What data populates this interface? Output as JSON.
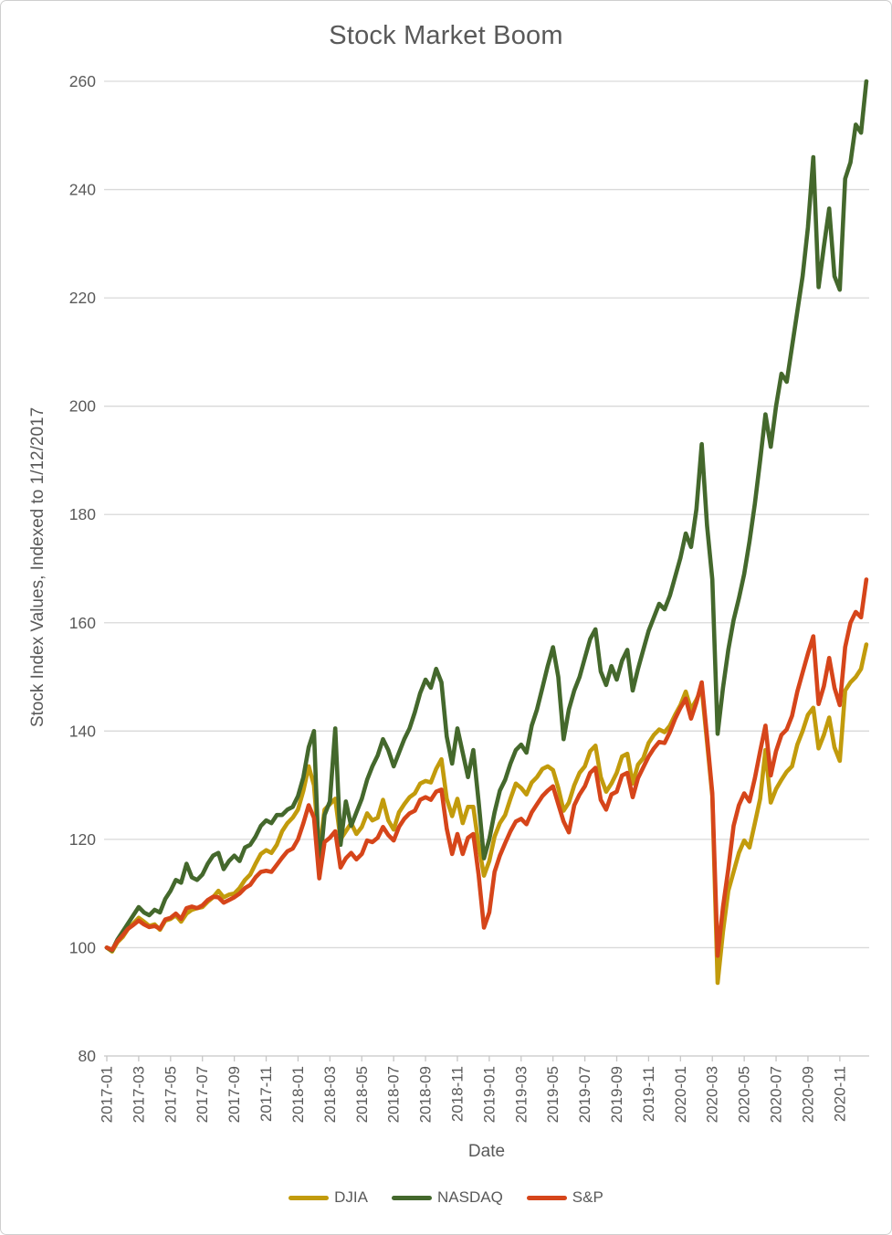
{
  "title": "Stock Market Boom",
  "colors": {
    "djia": "#c29b0c",
    "nasdaq": "#44682c",
    "sp": "#d6451a",
    "text": "#595959",
    "gridline": "#d9d9d9",
    "axis": "#c6c6c6",
    "border": "#cfcfcf"
  },
  "chart_data": {
    "type": "line",
    "title": "Stock Market Boom",
    "xlabel": "Date",
    "ylabel": "Stock Index Values, Indexed to 1/12/2017",
    "ylim": [
      80,
      260
    ],
    "y_ticks": [
      80,
      100,
      120,
      140,
      160,
      180,
      200,
      220,
      240,
      260
    ],
    "grid": "horizontal",
    "legend_position": "bottom",
    "x_start_month": "2017-01",
    "x_step_months": 0.33333,
    "x_range_months": [
      0,
      47.67
    ],
    "x_tick_step_months": 2,
    "x_tick_labels": [
      "2017-01",
      "2017-03",
      "2017-05",
      "2017-07",
      "2017-09",
      "2017-11",
      "2018-01",
      "2018-03",
      "2018-05",
      "2018-07",
      "2018-09",
      "2018-11",
      "2019-01",
      "2019-03",
      "2019-05",
      "2019-07",
      "2019-09",
      "2019-11",
      "2020-01",
      "2020-03",
      "2020-05",
      "2020-07",
      "2020-09",
      "2020-11"
    ],
    "series": [
      {
        "name": "DJIA",
        "color_key": "djia",
        "values": [
          100,
          99.3,
          101,
          102,
          103.5,
          104.5,
          105.5,
          104.8,
          104,
          104.3,
          103.3,
          105,
          105.3,
          106,
          104.8,
          106.3,
          107,
          107.3,
          107.5,
          108.5,
          109.3,
          110.5,
          109.3,
          109.8,
          110,
          111,
          112.5,
          113.5,
          115.5,
          117.3,
          118,
          117.5,
          119,
          121.5,
          123,
          124,
          125.5,
          129,
          133.5,
          130,
          117.7,
          125.5,
          126.5,
          127.5,
          120,
          121.5,
          123,
          121,
          122.3,
          124.8,
          123.5,
          124,
          127.3,
          123.5,
          121.8,
          125,
          126.5,
          127.8,
          128.5,
          130.3,
          130.8,
          130.5,
          133,
          134.8,
          127.5,
          124.3,
          127.5,
          123,
          126,
          126,
          119,
          113.3,
          116,
          120.5,
          123,
          124.5,
          127.5,
          130.3,
          129.5,
          128.3,
          130.5,
          131.5,
          133,
          133.5,
          132.8,
          129.5,
          125.3,
          126.8,
          130,
          132.3,
          133.5,
          136.3,
          137.3,
          131.5,
          128.8,
          130.3,
          132.3,
          135.3,
          135.8,
          130.3,
          133.8,
          135,
          137.8,
          139.3,
          140.3,
          139.8,
          141,
          143,
          144.8,
          147.3,
          144,
          145.8,
          147.9,
          138,
          128,
          93.5,
          103,
          110.5,
          114,
          117.5,
          119.8,
          118.5,
          123,
          127.5,
          136.5,
          126.8,
          129.3,
          131,
          132.5,
          133.5,
          137.5,
          140,
          143,
          144.3,
          136.8,
          139.3,
          142.5,
          137,
          134.5,
          147.5,
          149,
          150,
          151.5,
          156
        ]
      },
      {
        "name": "NASDAQ",
        "color_key": "nasdaq",
        "values": [
          100,
          99.5,
          101.5,
          103,
          104.5,
          106,
          107.5,
          106.5,
          106,
          107,
          106.5,
          109,
          110.5,
          112.5,
          112,
          115.5,
          113,
          112.5,
          113.5,
          115.5,
          117,
          117.5,
          114.5,
          116,
          117,
          116,
          118.5,
          119,
          120.5,
          122.5,
          123.5,
          123,
          124.5,
          124.5,
          125.5,
          126,
          128,
          131.5,
          137,
          140,
          114,
          124.5,
          127,
          140.5,
          119,
          127,
          122.5,
          125,
          127.5,
          131,
          133.5,
          135.5,
          138.5,
          136.5,
          133.5,
          136,
          138.5,
          140.5,
          143.5,
          147,
          149.5,
          148,
          151.5,
          149,
          139,
          134,
          140.5,
          136,
          131.5,
          136.5,
          127,
          116.5,
          120,
          125,
          129,
          131,
          134,
          136.5,
          137.5,
          136,
          141,
          144,
          148,
          152,
          155.5,
          150,
          138.5,
          144,
          147.5,
          150,
          153.5,
          157,
          158.8,
          151,
          148.5,
          152,
          149.5,
          153,
          155,
          147.5,
          151.5,
          155,
          158.5,
          161,
          163.5,
          162.5,
          165,
          168.5,
          172,
          176.5,
          174,
          181,
          193,
          178,
          168,
          139.5,
          148,
          155,
          160.5,
          164.5,
          169,
          175,
          182,
          190,
          198.5,
          192.5,
          200,
          206,
          204.5,
          211,
          217.5,
          224,
          233,
          246,
          222,
          229.5,
          236.5,
          224,
          221.5,
          242,
          245,
          252,
          250.5,
          260
        ]
      },
      {
        "name": "S&P",
        "color_key": "sp",
        "values": [
          100,
          99.6,
          101.2,
          102.3,
          103.5,
          104.2,
          105,
          104.3,
          103.8,
          104,
          103.5,
          105.2,
          105.5,
          106.3,
          105.3,
          107.3,
          107.6,
          107.3,
          107.8,
          108.8,
          109.4,
          109.3,
          108.3,
          108.8,
          109.3,
          110,
          111,
          111.6,
          113,
          114,
          114.2,
          114,
          115.3,
          116.6,
          117.8,
          118.3,
          120,
          123,
          126.3,
          124,
          112.8,
          119.5,
          120.3,
          121.5,
          114.8,
          116.5,
          117.5,
          116.3,
          117.3,
          119.8,
          119.5,
          120.3,
          122.3,
          120.8,
          119.8,
          122.3,
          123.8,
          124.8,
          125.3,
          127.3,
          127.8,
          127.3,
          128.8,
          129.2,
          122,
          117.3,
          121,
          117.3,
          120.3,
          121,
          113.5,
          103.7,
          106.5,
          114,
          117,
          119.3,
          121.5,
          123.3,
          123.8,
          122.8,
          125,
          126.5,
          128,
          129,
          129.8,
          126.5,
          123.3,
          121.3,
          126.3,
          128.3,
          129.8,
          132.3,
          133.2,
          127.3,
          125.5,
          128.3,
          128.8,
          131.8,
          132.3,
          127.8,
          131.3,
          133.3,
          135.3,
          136.8,
          138,
          137.8,
          139.8,
          142.3,
          144.3,
          146,
          142.3,
          145.3,
          149,
          139,
          128.5,
          98.5,
          107.5,
          114.5,
          122.5,
          126.3,
          128.5,
          127,
          131.3,
          136.3,
          141,
          131.8,
          136.3,
          139.3,
          140.3,
          142.8,
          147.3,
          150.8,
          154.3,
          157.5,
          145,
          148.3,
          153.5,
          148,
          144.8,
          155.5,
          160,
          162,
          161,
          168
        ]
      }
    ]
  },
  "legend": {
    "items": [
      {
        "label": "DJIA"
      },
      {
        "label": "NASDAQ"
      },
      {
        "label": "S&P"
      }
    ]
  }
}
